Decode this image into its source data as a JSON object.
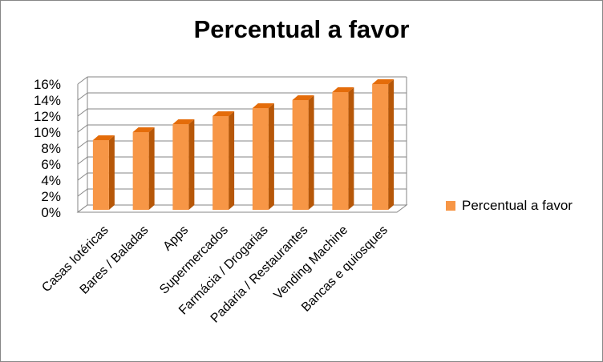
{
  "chart_data": {
    "type": "bar",
    "title": "Percentual a favor",
    "categories": [
      "Casas lotéricas",
      "Bares / Baladas",
      "Apps",
      "Supermercados",
      "Farmácia / Drogarias",
      "Padaria / Restaurantes",
      "Vending Machine",
      "Bancas e quiosques"
    ],
    "series": [
      {
        "name": "Percentual a favor",
        "values": [
          9,
          10,
          11,
          12,
          13,
          14,
          15,
          16
        ]
      }
    ],
    "ylim": [
      0,
      16
    ],
    "ytick_labels": [
      "0%",
      "2%",
      "4%",
      "6%",
      "8%",
      "10%",
      "12%",
      "14%",
      "16%"
    ],
    "grid": true,
    "legend_position": "right",
    "colors": {
      "bar_front": "#F79646",
      "bar_side": "#B65708",
      "bar_top": "#E46C0A",
      "grid": "#868686"
    }
  }
}
